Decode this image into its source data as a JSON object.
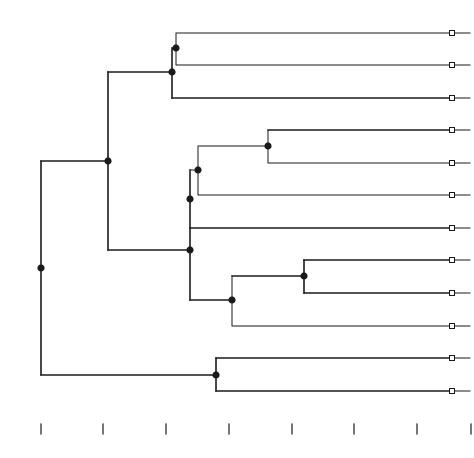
{
  "tree": {
    "leaves": 12,
    "branch_points": 11,
    "axis_ticks": 8
  },
  "colors": {
    "line": "#1a1a1a",
    "node": "#1a1a1a",
    "leaf_marker_fill": "#ffffff",
    "background": "#ffffff"
  }
}
